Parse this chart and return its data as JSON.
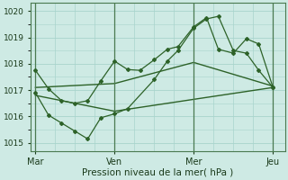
{
  "xlabel": "Pression niveau de la mer( hPa )",
  "ylim": [
    1014.7,
    1020.3
  ],
  "yticks": [
    1015,
    1016,
    1017,
    1018,
    1019,
    1020
  ],
  "xtick_labels": [
    "Mar",
    "Ven",
    "Mer",
    "Jeu"
  ],
  "xtick_positions": [
    0.0,
    0.333,
    0.666,
    1.0
  ],
  "bg_color": "#ceeae4",
  "grid_color": "#a8d4cc",
  "line_color": "#2d6228",
  "vline_color": "#4a7a50",
  "line1_x": [
    0.0,
    0.055,
    0.11,
    0.165,
    0.22,
    0.275,
    0.333,
    0.388,
    0.44,
    0.5,
    0.555,
    0.6,
    0.666,
    0.72,
    0.77,
    0.833,
    0.888,
    0.94,
    1.0
  ],
  "line1_y": [
    1017.75,
    1017.05,
    1016.6,
    1016.5,
    1016.6,
    1017.35,
    1018.1,
    1017.78,
    1017.75,
    1018.15,
    1018.55,
    1018.65,
    1019.4,
    1019.75,
    1018.55,
    1018.4,
    1018.95,
    1018.75,
    1017.1
  ],
  "line2_x": [
    0.0,
    0.055,
    0.11,
    0.165,
    0.22,
    0.275,
    0.333,
    0.388,
    0.5,
    0.555,
    0.6,
    0.666,
    0.72,
    0.77,
    0.833,
    0.888,
    0.94,
    1.0
  ],
  "line2_y": [
    1016.9,
    1016.05,
    1015.75,
    1015.45,
    1015.15,
    1015.95,
    1016.1,
    1016.3,
    1017.4,
    1018.1,
    1018.5,
    1019.35,
    1019.7,
    1019.8,
    1018.5,
    1018.4,
    1017.75,
    1017.1
  ],
  "line3_x": [
    0.0,
    0.333,
    0.666,
    1.0
  ],
  "line3_y": [
    1016.8,
    1016.2,
    1016.65,
    1017.1
  ],
  "line4_x": [
    0.0,
    0.333,
    0.666,
    1.0
  ],
  "line4_y": [
    1017.1,
    1017.25,
    1018.05,
    1017.15
  ],
  "vline_positions": [
    0.0,
    0.333,
    0.666,
    1.0
  ],
  "fig_width": 3.2,
  "fig_height": 2.0,
  "dpi": 100
}
